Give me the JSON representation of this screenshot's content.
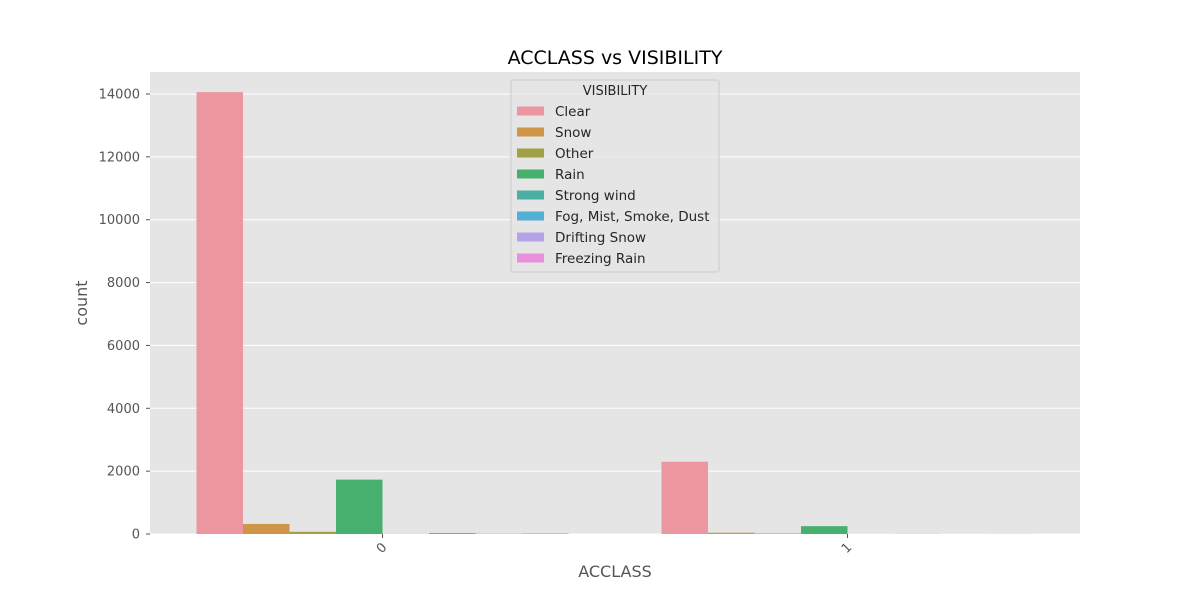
{
  "chart_data": {
    "type": "bar",
    "title": "ACCLASS vs VISIBILITY",
    "xlabel": "ACCLASS",
    "ylabel": "count",
    "categories": [
      "0",
      "1"
    ],
    "ylim": [
      0,
      14700
    ],
    "yticks": [
      0,
      2000,
      4000,
      6000,
      8000,
      10000,
      12000,
      14000
    ],
    "grid": true,
    "legend_title": "VISIBILITY",
    "legend_position": "top-center",
    "series": [
      {
        "name": "Clear",
        "color": "#eb96a1",
        "values": [
          14060,
          2300
        ]
      },
      {
        "name": "Snow",
        "color": "#cf9549",
        "values": [
          320,
          40
        ]
      },
      {
        "name": "Other",
        "color": "#a1a042",
        "values": [
          70,
          15
        ]
      },
      {
        "name": "Rain",
        "color": "#48b06f",
        "values": [
          1730,
          250
        ]
      },
      {
        "name": "Strong wind",
        "color": "#4bb0a4",
        "values": [
          5,
          2
        ]
      },
      {
        "name": "Fog, Mist, Smoke, Dust",
        "color": "#53afd3",
        "values": [
          30,
          5
        ]
      },
      {
        "name": "Drifting Snow",
        "color": "#b5a3ea",
        "values": [
          12,
          3
        ]
      },
      {
        "name": "Freezing Rain",
        "color": "#e990dd",
        "values": [
          20,
          4
        ]
      }
    ]
  }
}
